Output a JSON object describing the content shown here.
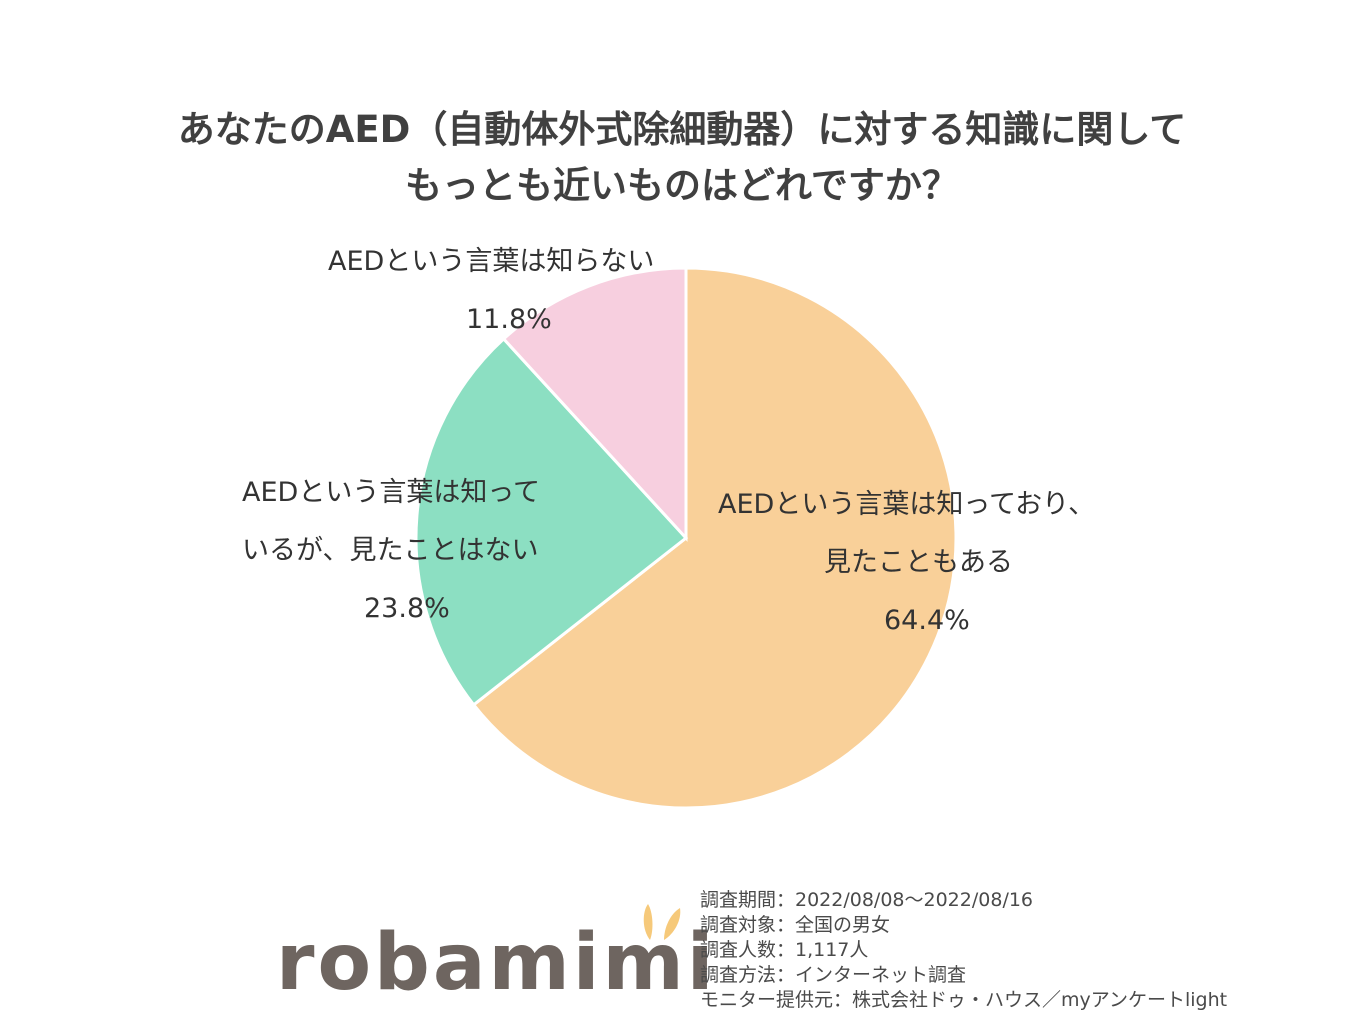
{
  "chart_data": {
    "type": "pie",
    "title_lines": [
      "あなたのAED（自動体外式除細動器）に対する知識に関して",
      "もっとも近いものはどれですか？"
    ],
    "slices": [
      {
        "label_lines": [
          "AEDという言葉は知っており、",
          "見たこともある"
        ],
        "value": 64.4,
        "value_label": "64.4%",
        "color": "#f9d099"
      },
      {
        "label_lines": [
          "AEDという言葉は知って",
          "いるが、見たことはない"
        ],
        "value": 23.8,
        "value_label": "23.8%",
        "color": "#8cdfc2"
      },
      {
        "label_lines": [
          "AEDという言葉は知らない"
        ],
        "value": 11.8,
        "value_label": "11.8%",
        "color": "#f7cfdf"
      }
    ],
    "start": "12 o'clock",
    "direction": "clockwise"
  },
  "footer": {
    "logo_text": "robamimi",
    "logo_ear_color": "#f6c97a",
    "survey_lines": [
      "調査期間：2022/08/08～2022/08/16",
      "調査対象：全国の男女",
      "調査人数：1,117人",
      "調査方法：インターネット調査",
      "モニター提供元：株式会社ドゥ・ハウス／myアンケートlight"
    ]
  }
}
